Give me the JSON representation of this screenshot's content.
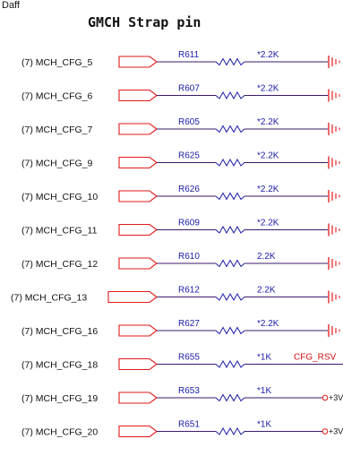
{
  "corner_label": "Daff",
  "title": "GMCH Strap pin",
  "colors": {
    "wire": "#3a1a6a",
    "port": "#e21a1a",
    "resistor": "#1a1aa8",
    "ground": "#e21a1a",
    "net": "#d01010"
  },
  "rows": [
    {
      "signal": "(7)  MCH_CFG_5",
      "ref": "R611",
      "value": "*2.2K",
      "term": "gnd"
    },
    {
      "signal": "(7)  MCH_CFG_6",
      "ref": "R607",
      "value": "*2.2K",
      "term": "gnd"
    },
    {
      "signal": "(7)  MCH_CFG_7",
      "ref": "R605",
      "value": "*2.2K",
      "term": "gnd"
    },
    {
      "signal": "(7)  MCH_CFG_9",
      "ref": "R625",
      "value": "*2.2K",
      "term": "gnd"
    },
    {
      "signal": "(7)  MCH_CFG_10",
      "ref": "R626",
      "value": "*2.2K",
      "term": "gnd"
    },
    {
      "signal": "(7)  MCH_CFG_11",
      "ref": "R609",
      "value": "*2.2K",
      "term": "gnd"
    },
    {
      "signal": "(7)  MCH_CFG_12",
      "ref": "R610",
      "value": "2.2K",
      "term": "gnd"
    },
    {
      "signal": "(7)  MCH_CFG_13",
      "ref": "R612",
      "value": "2.2K",
      "term": "gnd"
    },
    {
      "signal": "(7)  MCH_CFG_16",
      "ref": "R627",
      "value": "*2.2K",
      "term": "gnd"
    },
    {
      "signal": "(7)  MCH_CFG_18",
      "ref": "R655",
      "value": "*1K",
      "term": "net",
      "net_label": "CFG_RSV"
    },
    {
      "signal": "(7)  MCH_CFG_19",
      "ref": "R653",
      "value": "*1K",
      "term": "power",
      "power_label": "+3V"
    },
    {
      "signal": "(7)  MCH_CFG_20",
      "ref": "R651",
      "value": "*1K",
      "term": "power",
      "power_label": "+3V"
    }
  ]
}
